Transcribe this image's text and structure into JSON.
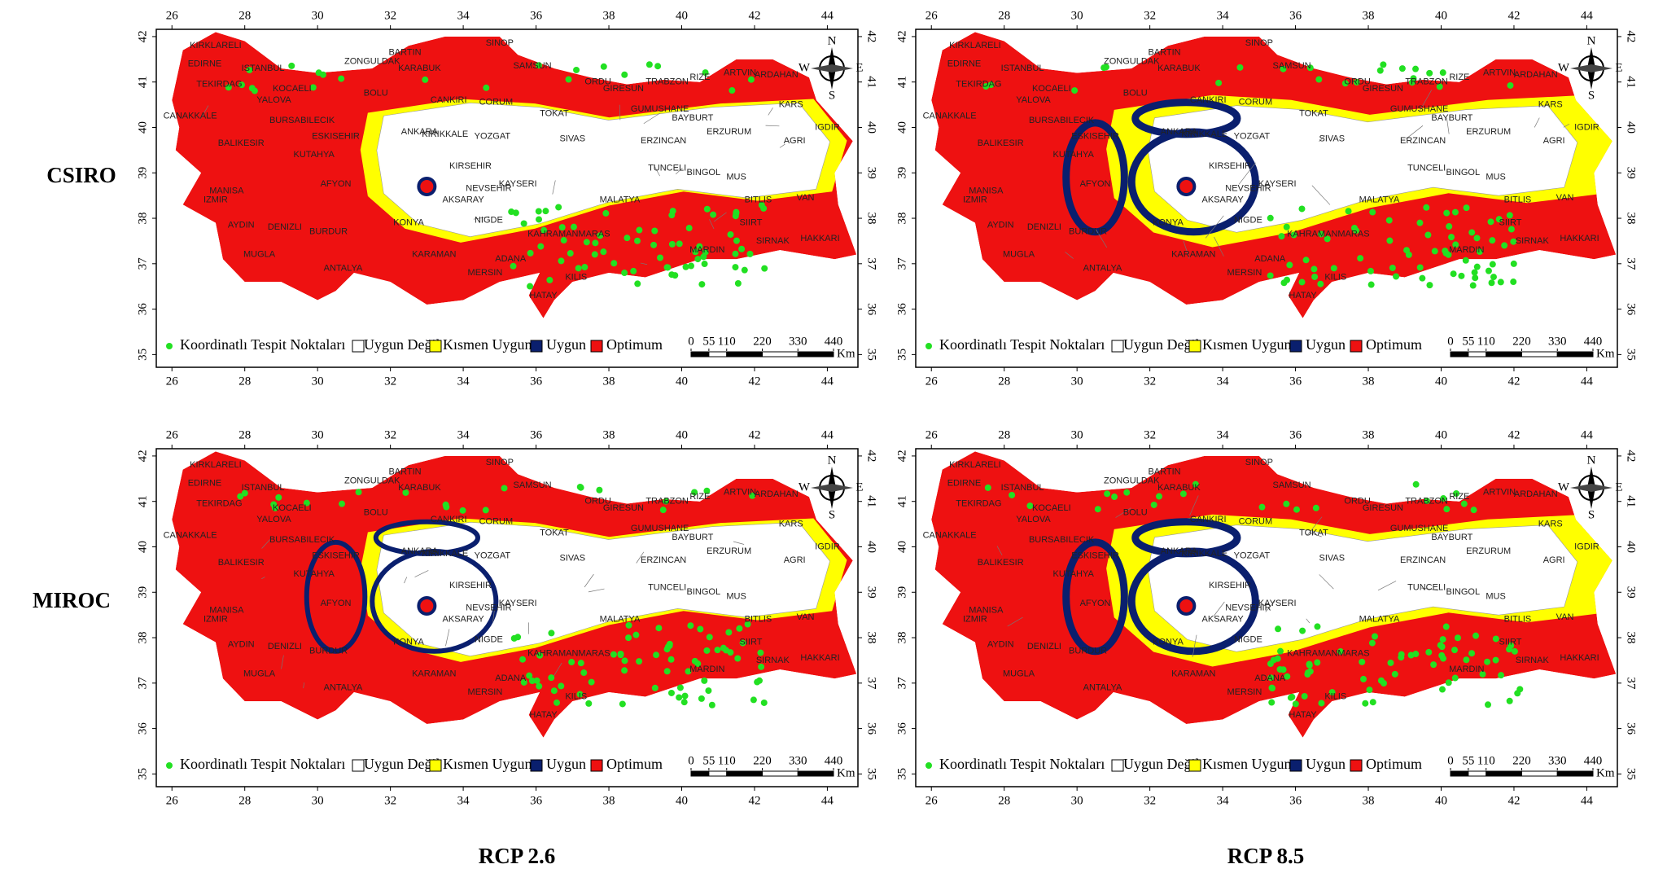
{
  "rows": [
    "CSIRO",
    "MIROC"
  ],
  "columns": [
    "RCP 2.6",
    "RCP 8.5"
  ],
  "map": {
    "lon_range": [
      25.57,
      44.84
    ],
    "lat_range": [
      34.72,
      42.16
    ],
    "lon_ticks": [
      26,
      28,
      30,
      32,
      34,
      36,
      38,
      40,
      42,
      44
    ],
    "lat_ticks": [
      35,
      36,
      37,
      38,
      39,
      40,
      41,
      42
    ]
  },
  "legend": [
    {
      "label": "Koordinatlı Tespit Noktaları",
      "color": "#22e022"
    },
    {
      "label": "Uygun Değil",
      "color": "#ffffff"
    },
    {
      "label": "Kısmen Uygun",
      "color": "#ffff00"
    },
    {
      "label": "Uygun",
      "color": "#0a1f6e"
    },
    {
      "label": "Optimum",
      "color": "#ee1111"
    }
  ],
  "scale_bar": {
    "ticks": [
      0,
      55,
      110,
      220,
      330,
      440
    ],
    "unit": "Km"
  },
  "compass": [
    "N",
    "E",
    "S",
    "W"
  ],
  "cities": [
    "KIRKLARELI",
    "EDIRNE",
    "ISTANBUL",
    "TEKIRDAG",
    "CANAKKALE",
    "KOCAELI",
    "YALOVA",
    "ZONGULDAK",
    "BARTIN",
    "KARABUK",
    "SINOP",
    "SAMSUN",
    "ORDU",
    "GIRESUN",
    "TRABZON",
    "RIZE",
    "ARTVIN",
    "ARDAHAN",
    "KARS",
    "IGDIR",
    "AGRI",
    "ERZURUM",
    "BAYBURT",
    "GUMUSHANE",
    "ERZINCAN",
    "TUNCELI",
    "BINGOL",
    "MUS",
    "BITLIS",
    "VAN",
    "HAKKARI",
    "SIRNAK",
    "SIIRT",
    "MARDIN",
    "MALATYA",
    "KAHRAMANMARAS",
    "KILIS",
    "HATAY",
    "ADANA",
    "MERSIN",
    "KARAMAN",
    "ANTALYA",
    "MUGLA",
    "AYDIN",
    "IZMIR",
    "MANISA",
    "BALIKESIR",
    "BURSA",
    "BILECIK",
    "BOLU",
    "CANKIRI",
    "CORUM",
    "TOKAT",
    "SIVAS",
    "YOZGAT",
    "KIRIKKALE",
    "ANKARA",
    "ESKISEHIR",
    "KUTAHYA",
    "AFYON",
    "DENIZLI",
    "BURDUR",
    "KONYA",
    "AKSARAY",
    "NEVSEHIR",
    "KIRSEHIR",
    "NIGDE",
    "KAYSERI"
  ]
}
